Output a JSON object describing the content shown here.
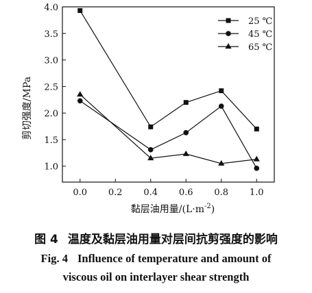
{
  "chart_data": {
    "type": "line",
    "x": [
      0.0,
      0.4,
      0.6,
      0.8,
      1.0
    ],
    "series": [
      {
        "name": "25 ℃",
        "marker": "square",
        "values": [
          3.93,
          1.74,
          2.2,
          2.42,
          1.7
        ]
      },
      {
        "name": "45 ℃",
        "marker": "circle",
        "values": [
          2.23,
          1.31,
          1.63,
          2.13,
          0.96
        ]
      },
      {
        "name": "65 ℃",
        "marker": "triangle",
        "values": [
          2.35,
          1.15,
          1.23,
          1.05,
          1.13
        ]
      }
    ],
    "xlabel": "黏层油用量/(L·m",
    "xlabel_sup": "-2",
    "xlabel_close": ")",
    "ylabel": "剪切强度/MPa",
    "xlim": [
      -0.1,
      1.1
    ],
    "ylim": [
      0.7,
      4.0
    ],
    "x_ticks": [
      0.0,
      0.2,
      0.4,
      0.6,
      0.8,
      1.0
    ],
    "x_tick_labels": [
      "0.0",
      "0.2",
      "0.4",
      "0.6",
      "0.8",
      "1.0"
    ],
    "y_ticks": [
      1.0,
      1.5,
      2.0,
      2.5,
      3.0,
      3.5,
      4.0
    ],
    "y_tick_labels": [
      "1.0",
      "1.5",
      "2.0",
      "2.5",
      "3.0",
      "3.5",
      "4.0"
    ],
    "grid": false,
    "legend_position": "top-right",
    "color": "#111111"
  },
  "caption": {
    "cn_prefix": "图 4",
    "cn_title": "温度及黏层油用量对层间抗剪强度的影响",
    "en_prefix": "Fig. 4",
    "en_line1": "Influence of temperature and amount of",
    "en_line2": "viscous oil on interlayer shear strength"
  }
}
